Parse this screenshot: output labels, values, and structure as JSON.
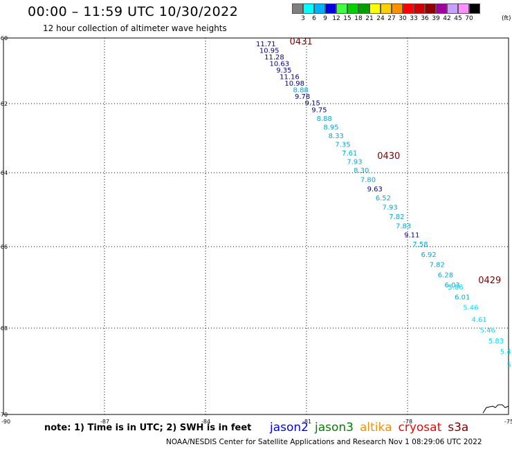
{
  "header": {
    "title": "00:00 – 11:59 UTC 10/30/2022",
    "subtitle": "12 hour collection of altimeter wave heights"
  },
  "color_scale": {
    "labels": [
      "3",
      "6",
      "9",
      "12",
      "15",
      "18",
      "21",
      "24",
      "27",
      "30",
      "33",
      "36",
      "39",
      "42",
      "45",
      "70"
    ],
    "unit": "(ft)",
    "colors": [
      "#7f7f7f",
      "#00ffff",
      "#00b0ff",
      "#0000e0",
      "#40ff40",
      "#00d000",
      "#00a000",
      "#ffff00",
      "#ffd000",
      "#ff9000",
      "#ff0000",
      "#d00000",
      "#900000",
      "#a000a0",
      "#c8a0ff",
      "#ff90ff",
      "#000000"
    ]
  },
  "axes": {
    "lon_labels": [
      "-90",
      "-87",
      "-84",
      "-81",
      "-78",
      "-75"
    ],
    "lat_labels": [
      "-60",
      "-62",
      "-64",
      "-66",
      "-68",
      "-70"
    ]
  },
  "passes": [
    {
      "time": "0431",
      "color": "#800000",
      "kind": "time-label"
    },
    {
      "time": "0430",
      "color": "#800000",
      "kind": "time-label"
    },
    {
      "time": "0429",
      "color": "#800000",
      "kind": "time-label"
    }
  ],
  "observations": [
    {
      "v": "11.71",
      "c": "#00008b",
      "lon": -82.5,
      "lat": -60.25
    },
    {
      "v": "10.95",
      "c": "#00008b",
      "lon": -82.4,
      "lat": -60.45
    },
    {
      "v": "11.28",
      "c": "#00008b",
      "lon": -82.25,
      "lat": -60.65
    },
    {
      "v": "10.63",
      "c": "#00008b",
      "lon": -82.1,
      "lat": -60.85
    },
    {
      "v": "9.35",
      "c": "#00008b",
      "lon": -81.9,
      "lat": -61.05
    },
    {
      "v": "11.16",
      "c": "#00008b",
      "lon": -81.8,
      "lat": -61.25
    },
    {
      "v": "10.98",
      "c": "#00008b",
      "lon": -81.65,
      "lat": -61.45
    },
    {
      "v": "8.88",
      "c": "#00aadd",
      "lon": -81.4,
      "lat": -61.65
    },
    {
      "v": "9.78",
      "c": "#00008b",
      "lon": -81.35,
      "lat": -61.85
    },
    {
      "v": "9.15",
      "c": "#00008b",
      "lon": -81.05,
      "lat": -62.05
    },
    {
      "v": "9.75",
      "c": "#00008b",
      "lon": -80.85,
      "lat": -62.25
    },
    {
      "v": "8.88",
      "c": "#00aadd",
      "lon": -80.7,
      "lat": -62.5
    },
    {
      "v": "8.95",
      "c": "#00aadd",
      "lon": -80.5,
      "lat": -62.75
    },
    {
      "v": "8.33",
      "c": "#00aadd",
      "lon": -80.35,
      "lat": -63.0
    },
    {
      "v": "7.35",
      "c": "#00aadd",
      "lon": -80.15,
      "lat": -63.25
    },
    {
      "v": "7.61",
      "c": "#00aadd",
      "lon": -79.95,
      "lat": -63.5
    },
    {
      "v": "7.93",
      "c": "#00aadd",
      "lon": -79.8,
      "lat": -63.75
    },
    {
      "v": "8.30",
      "c": "#00aadd",
      "lon": -79.6,
      "lat": -64.0
    },
    {
      "v": "7.80",
      "c": "#00aadd",
      "lon": -79.4,
      "lat": -64.25
    },
    {
      "v": "9.63",
      "c": "#00008b",
      "lon": -79.2,
      "lat": -64.5
    },
    {
      "v": "6.52",
      "c": "#00aadd",
      "lon": -78.95,
      "lat": -64.75
    },
    {
      "v": "7.93",
      "c": "#00aadd",
      "lon": -78.75,
      "lat": -65.0
    },
    {
      "v": "7.82",
      "c": "#00aadd",
      "lon": -78.55,
      "lat": -65.25
    },
    {
      "v": "7.83",
      "c": "#00aadd",
      "lon": -78.35,
      "lat": -65.5
    },
    {
      "v": "9.11",
      "c": "#00008b",
      "lon": -78.1,
      "lat": -65.75
    },
    {
      "v": "7.58",
      "c": "#00aadd",
      "lon": -77.85,
      "lat": -66.0
    },
    {
      "v": "6.92",
      "c": "#00aadd",
      "lon": -77.6,
      "lat": -66.25
    },
    {
      "v": "7.82",
      "c": "#00aadd",
      "lon": -77.35,
      "lat": -66.5
    },
    {
      "v": "6.28",
      "c": "#00aadd",
      "lon": -77.1,
      "lat": -66.75
    },
    {
      "v": "6.03",
      "c": "#00aadd",
      "lon": -76.9,
      "lat": -67.0
    },
    {
      "v": "5.86",
      "c": "#00ddff",
      "lon": -76.8,
      "lat": -67.05
    },
    {
      "v": "6.01",
      "c": "#00aadd",
      "lon": -76.6,
      "lat": -67.3
    },
    {
      "v": "5.46",
      "c": "#00ddff",
      "lon": -76.35,
      "lat": -67.55
    },
    {
      "v": "4.61",
      "c": "#00ddff",
      "lon": -76.1,
      "lat": -67.85
    },
    {
      "v": "5.46",
      "c": "#00ddff",
      "lon": -75.85,
      "lat": -68.1
    },
    {
      "v": "5.83",
      "c": "#00ddff",
      "lon": -75.6,
      "lat": -68.35
    },
    {
      "v": "5.4",
      "c": "#00ddff",
      "lon": -75.25,
      "lat": -68.6
    },
    {
      "v": "5",
      "c": "#00ddff",
      "lon": -75.05,
      "lat": -68.9
    }
  ],
  "footer": {
    "note": "note: 1) Time is in UTC; 2) SWH is in feet",
    "satellites": [
      {
        "name": "jason2",
        "color": "#0000ff"
      },
      {
        "name": "jason3",
        "color": "#008000"
      },
      {
        "name": "altika",
        "color": "#ff8c00"
      },
      {
        "name": "cryosat",
        "color": "#ff0000"
      },
      {
        "name": "s3a",
        "color": "#800000"
      }
    ],
    "credit": "NOAA/NESDIS Center for Satellite Applications and Research    Nov  1 08:29:06 UTC 2022"
  }
}
